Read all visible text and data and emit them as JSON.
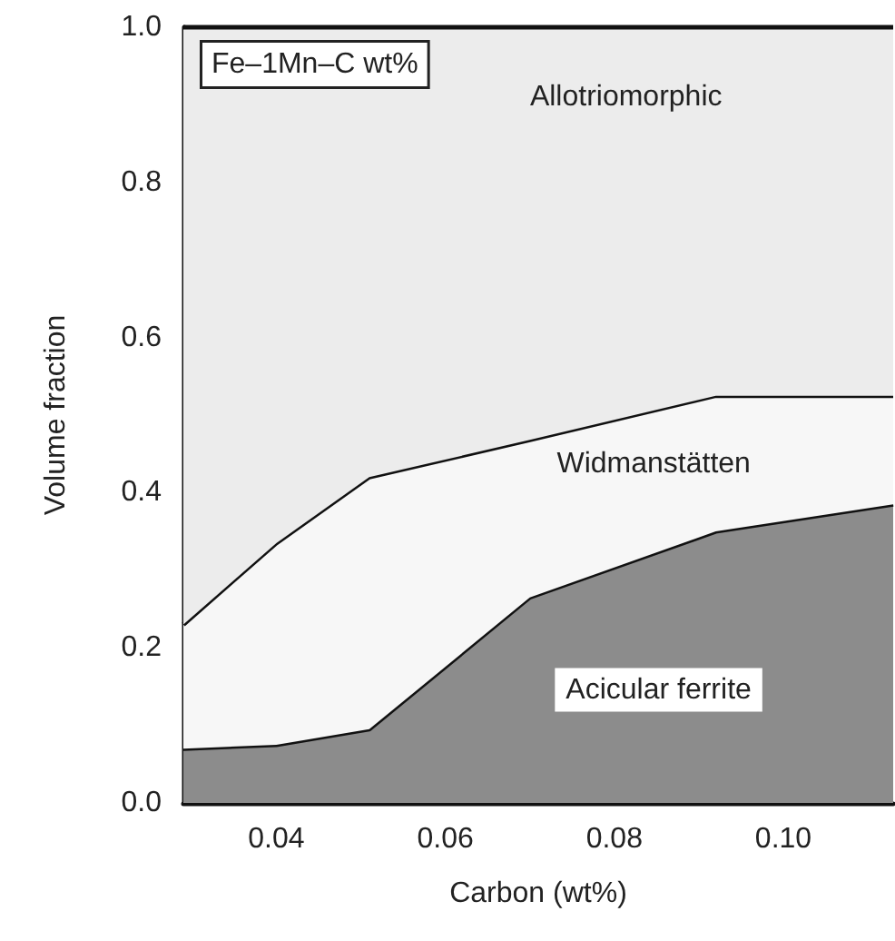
{
  "chart_data": {
    "type": "area",
    "stacked": true,
    "xlabel": "Carbon (wt%)",
    "ylabel": "Volume fraction",
    "x": [
      0.029,
      0.04,
      0.051,
      0.07,
      0.092,
      0.113
    ],
    "series": [
      {
        "name": "Acicular ferrite",
        "color": "#8c8c8c",
        "values": [
          0.07,
          0.075,
          0.095,
          0.265,
          0.35,
          0.385
        ]
      },
      {
        "name": "Widmanstätten",
        "color": "#f7f7f7",
        "values": [
          0.16,
          0.26,
          0.325,
          0.203,
          0.175,
          0.14
        ]
      },
      {
        "name": "Allotriomorphic",
        "color": "#ececec",
        "values": [
          0.77,
          0.665,
          0.58,
          0.532,
          0.475,
          0.475
        ]
      }
    ],
    "xlim": [
      0.029,
      0.113
    ],
    "ylim": [
      0,
      1
    ],
    "xticks": [
      0.04,
      0.06,
      0.08,
      {
        "value": 0.1,
        "label": "0.10"
      }
    ],
    "yticks": [
      {
        "value": 0,
        "label": "0.0"
      },
      0.2,
      0.4,
      0.6,
      0.8,
      {
        "value": 1,
        "label": "1.0"
      }
    ],
    "annotations": [
      "Fe–1Mn–C wt%"
    ],
    "legend": false
  }
}
